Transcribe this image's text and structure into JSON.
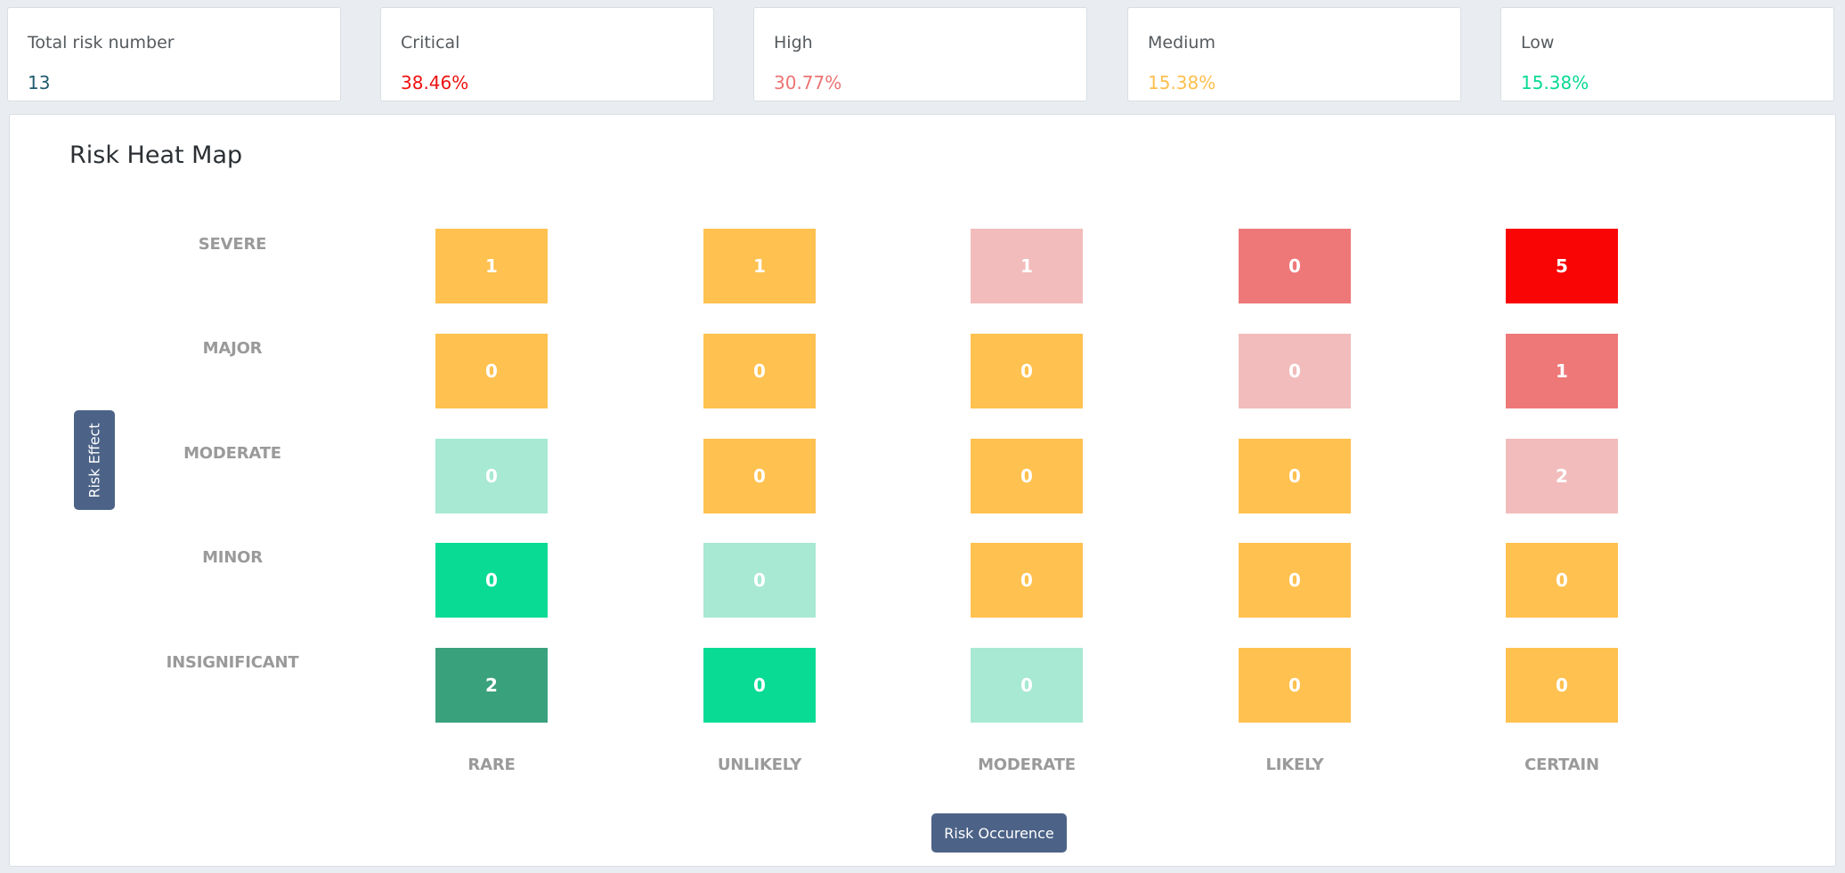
{
  "stats": [
    {
      "label": "Total risk number",
      "value": "13",
      "color": "#1f5b6e"
    },
    {
      "label": "Critical",
      "value": "38.46%",
      "color": "#ee1111"
    },
    {
      "label": "High",
      "value": "30.77%",
      "color": "#ec7474"
    },
    {
      "label": "Medium",
      "value": "15.38%",
      "color": "#fdbf4e"
    },
    {
      "label": "Low",
      "value": "15.38%",
      "color": "#08d993"
    }
  ],
  "heatmap": {
    "title": "Risk Heat Map",
    "y_axis_label": "Risk Effect",
    "x_axis_label": "Risk Occurence",
    "rows": [
      "SEVERE",
      "MAJOR",
      "MODERATE",
      "MINOR",
      "INSIGNIFICANT"
    ],
    "columns": [
      "RARE",
      "UNLIKELY",
      "MODERATE",
      "LIKELY",
      "CERTAIN"
    ],
    "colors": {
      "critical": "#f90506",
      "high": "#ee7878",
      "elevated": "#f2bcbc",
      "medium": "#ffc14f",
      "low_light": "#a7e9d3",
      "low": "#09db94",
      "lowest": "#3aa17d"
    },
    "cells": [
      [
        {
          "value": "1",
          "level": "medium"
        },
        {
          "value": "1",
          "level": "medium"
        },
        {
          "value": "1",
          "level": "elevated"
        },
        {
          "value": "0",
          "level": "high"
        },
        {
          "value": "5",
          "level": "critical"
        }
      ],
      [
        {
          "value": "0",
          "level": "medium"
        },
        {
          "value": "0",
          "level": "medium"
        },
        {
          "value": "0",
          "level": "medium"
        },
        {
          "value": "0",
          "level": "elevated"
        },
        {
          "value": "1",
          "level": "high"
        }
      ],
      [
        {
          "value": "0",
          "level": "low_light"
        },
        {
          "value": "0",
          "level": "medium"
        },
        {
          "value": "0",
          "level": "medium"
        },
        {
          "value": "0",
          "level": "medium"
        },
        {
          "value": "2",
          "level": "elevated"
        }
      ],
      [
        {
          "value": "0",
          "level": "low"
        },
        {
          "value": "0",
          "level": "low_light"
        },
        {
          "value": "0",
          "level": "medium"
        },
        {
          "value": "0",
          "level": "medium"
        },
        {
          "value": "0",
          "level": "medium"
        }
      ],
      [
        {
          "value": "2",
          "level": "lowest"
        },
        {
          "value": "0",
          "level": "low"
        },
        {
          "value": "0",
          "level": "low_light"
        },
        {
          "value": "0",
          "level": "medium"
        },
        {
          "value": "0",
          "level": "medium"
        }
      ]
    ]
  }
}
